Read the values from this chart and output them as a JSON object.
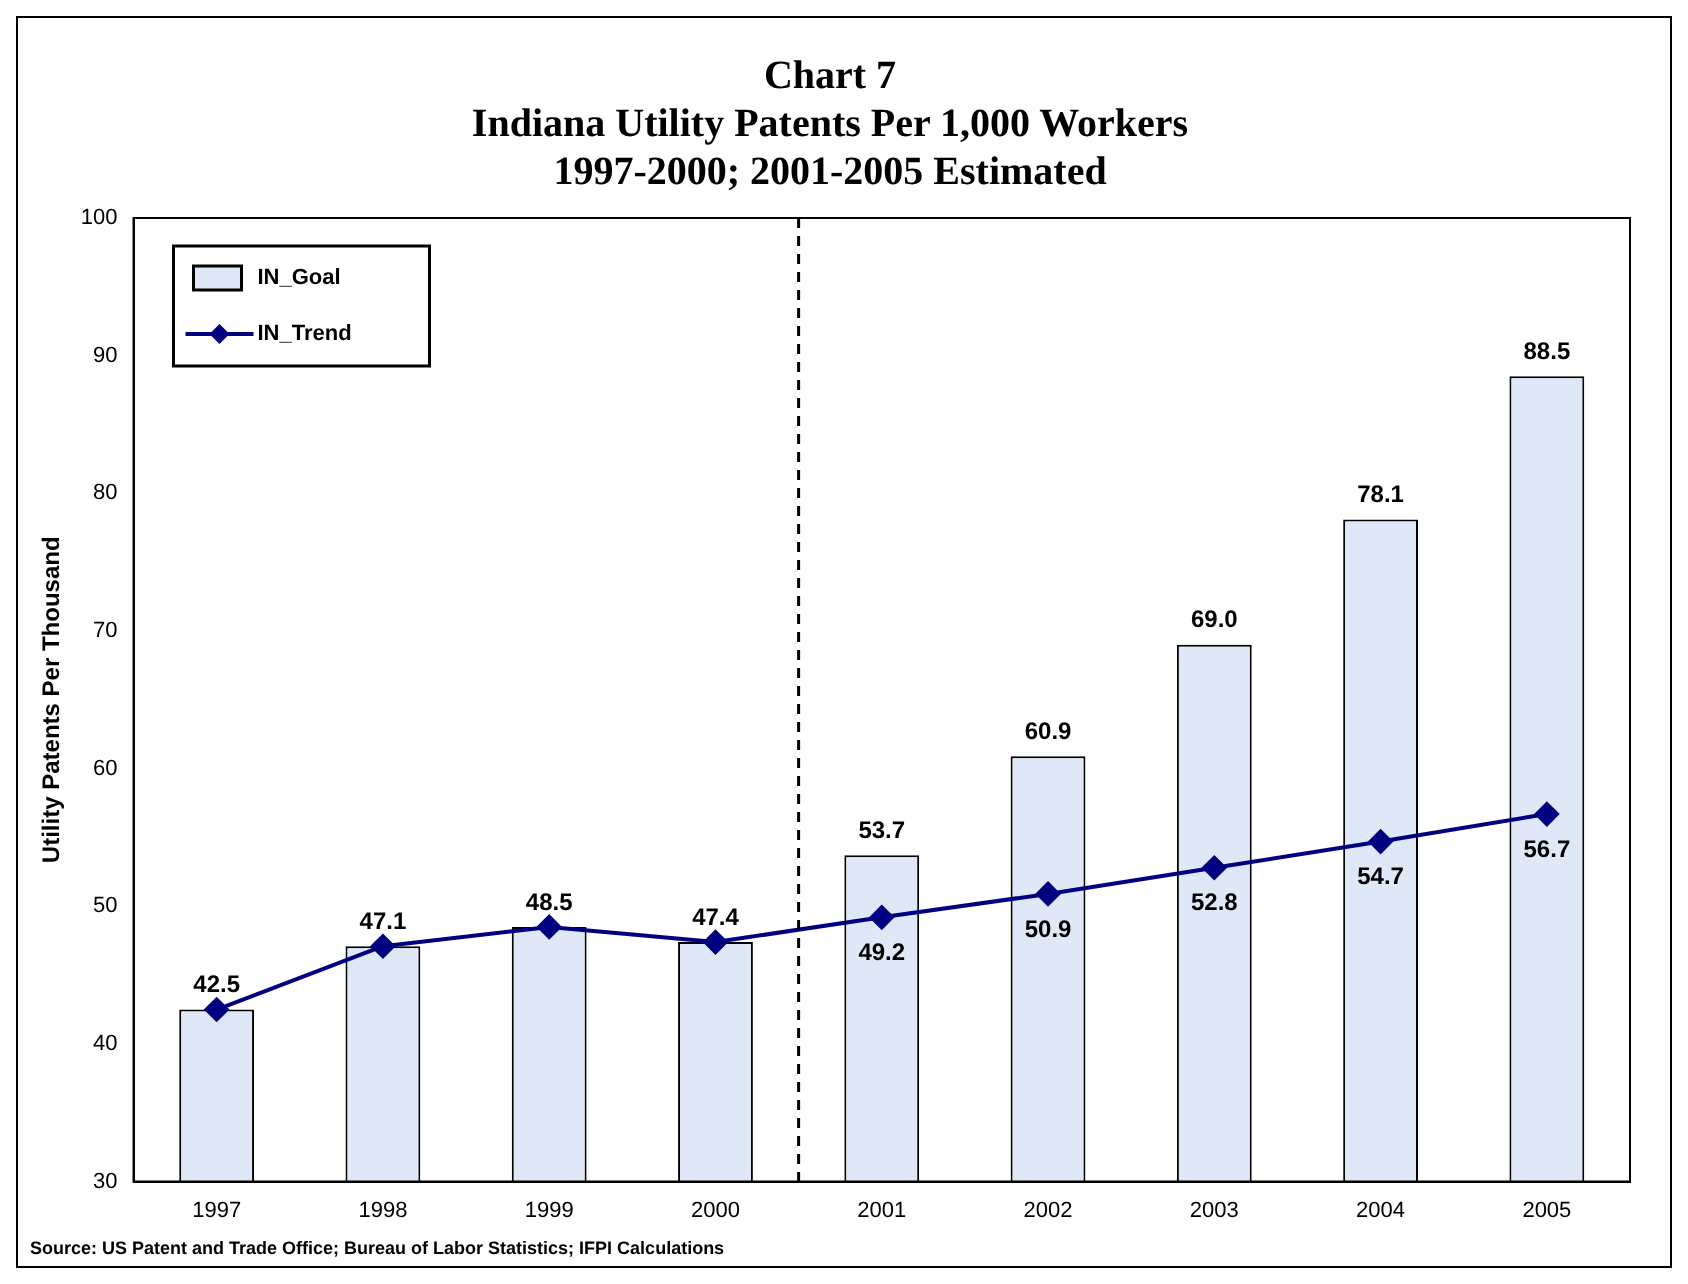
{
  "chart_data": {
    "type": "bar",
    "title": "Chart 7",
    "subtitle": "Indiana Utility Patents Per 1,000 Workers\n1997-2000; 2001-2005 Estimated",
    "ylabel": "Utility Patents Per Thousand",
    "x": [
      1997,
      1998,
      1999,
      2000,
      2001,
      2002,
      2003,
      2004,
      2005
    ],
    "xlim": [
      1996.5,
      2005.5
    ],
    "xticks": [
      1997,
      1998,
      1999,
      2000,
      2001,
      2002,
      2003,
      2004,
      2005
    ],
    "ylim": [
      30,
      100
    ],
    "yticks": [
      30,
      40,
      50,
      60,
      70,
      80,
      90,
      100
    ],
    "grid": false,
    "legend": "top left",
    "series": [
      {
        "name": "IN_Goal",
        "color": "#dfe8f7",
        "values": [
          42.5,
          47.1,
          48.5,
          47.4,
          53.7,
          60.9,
          69.0,
          78.1,
          88.5
        ],
        "value_labels": [
          "42.5",
          "47.1",
          "48.5",
          "47.4",
          "53.7",
          "60.9",
          "69.0",
          "78.1",
          "88.5"
        ]
      },
      {
        "name": "IN_Trend",
        "type": "line",
        "color": "#000080",
        "marker": "diamond",
        "line_style": "solid",
        "values": [
          42.5,
          47.1,
          48.5,
          47.4,
          49.2,
          50.9,
          52.8,
          54.7,
          56.7
        ],
        "value_labels": [
          null,
          null,
          null,
          null,
          "49.2",
          "50.9",
          "52.8",
          "54.7",
          "56.7"
        ]
      }
    ],
    "ref_lines": [
      {
        "axis": "x",
        "value": 2000.5,
        "color": "#000000",
        "line_style": "dashed"
      }
    ],
    "annotations": [
      "Source: US Patent and Trade Office; Bureau of Labor Statistics; IFPI Calculations"
    ]
  }
}
